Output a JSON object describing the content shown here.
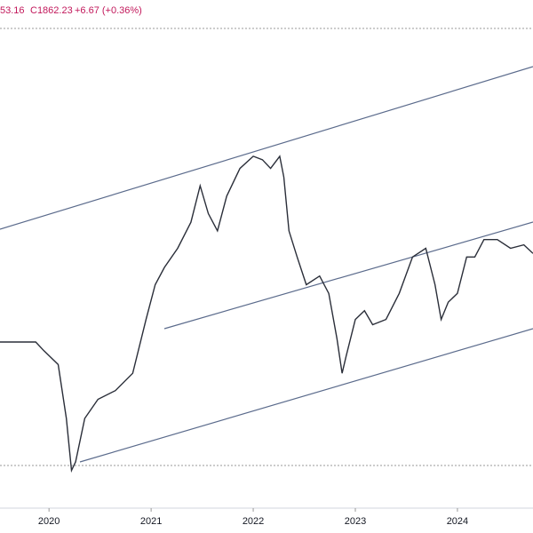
{
  "chart_data": {
    "type": "line",
    "annotations": [
      "53.16",
      "C1862.23",
      "+6.67 (+0.36%)"
    ],
    "x": [
      2019.52,
      2019.69,
      2019.87,
      2019.95,
      2020.09,
      2020.17,
      2020.22,
      2020.26,
      2020.35,
      2020.48,
      2020.65,
      2020.82,
      2020.95,
      2021.04,
      2021.13,
      2021.26,
      2021.39,
      2021.48,
      2021.56,
      2021.65,
      2021.74,
      2021.87,
      2022.0,
      2022.09,
      2022.17,
      2022.26,
      2022.3,
      2022.35,
      2022.43,
      2022.52,
      2022.65,
      2022.74,
      2022.82,
      2022.87,
      2022.91,
      2023.0,
      2023.09,
      2023.17,
      2023.3,
      2023.43,
      2023.56,
      2023.69,
      2023.78,
      2023.84,
      2023.91,
      2024.0,
      2024.09,
      2024.17,
      2024.26,
      2024.39,
      2024.52,
      2024.65,
      2024.74
    ],
    "series": [
      {
        "color": "#2a2e39",
        "values": [
          1350,
          1350,
          1350,
          1300,
          1220,
          910,
          610,
          660,
          910,
          1020,
          1070,
          1170,
          1480,
          1680,
          1780,
          1890,
          2040,
          2250,
          2090,
          1990,
          2190,
          2350,
          2420,
          2400,
          2350,
          2420,
          2300,
          1990,
          1840,
          1680,
          1730,
          1630,
          1370,
          1170,
          1270,
          1480,
          1530,
          1450,
          1480,
          1630,
          1840,
          1890,
          1680,
          1480,
          1580,
          1630,
          1840,
          1840,
          1940,
          1940,
          1890,
          1910,
          1860
        ]
      }
    ],
    "xlim": [
      2019.52,
      2024.74
    ],
    "xticks": [
      2020,
      2021,
      2022,
      2023,
      2024
    ],
    "ylim": [
      250,
      3320
    ]
  }
}
